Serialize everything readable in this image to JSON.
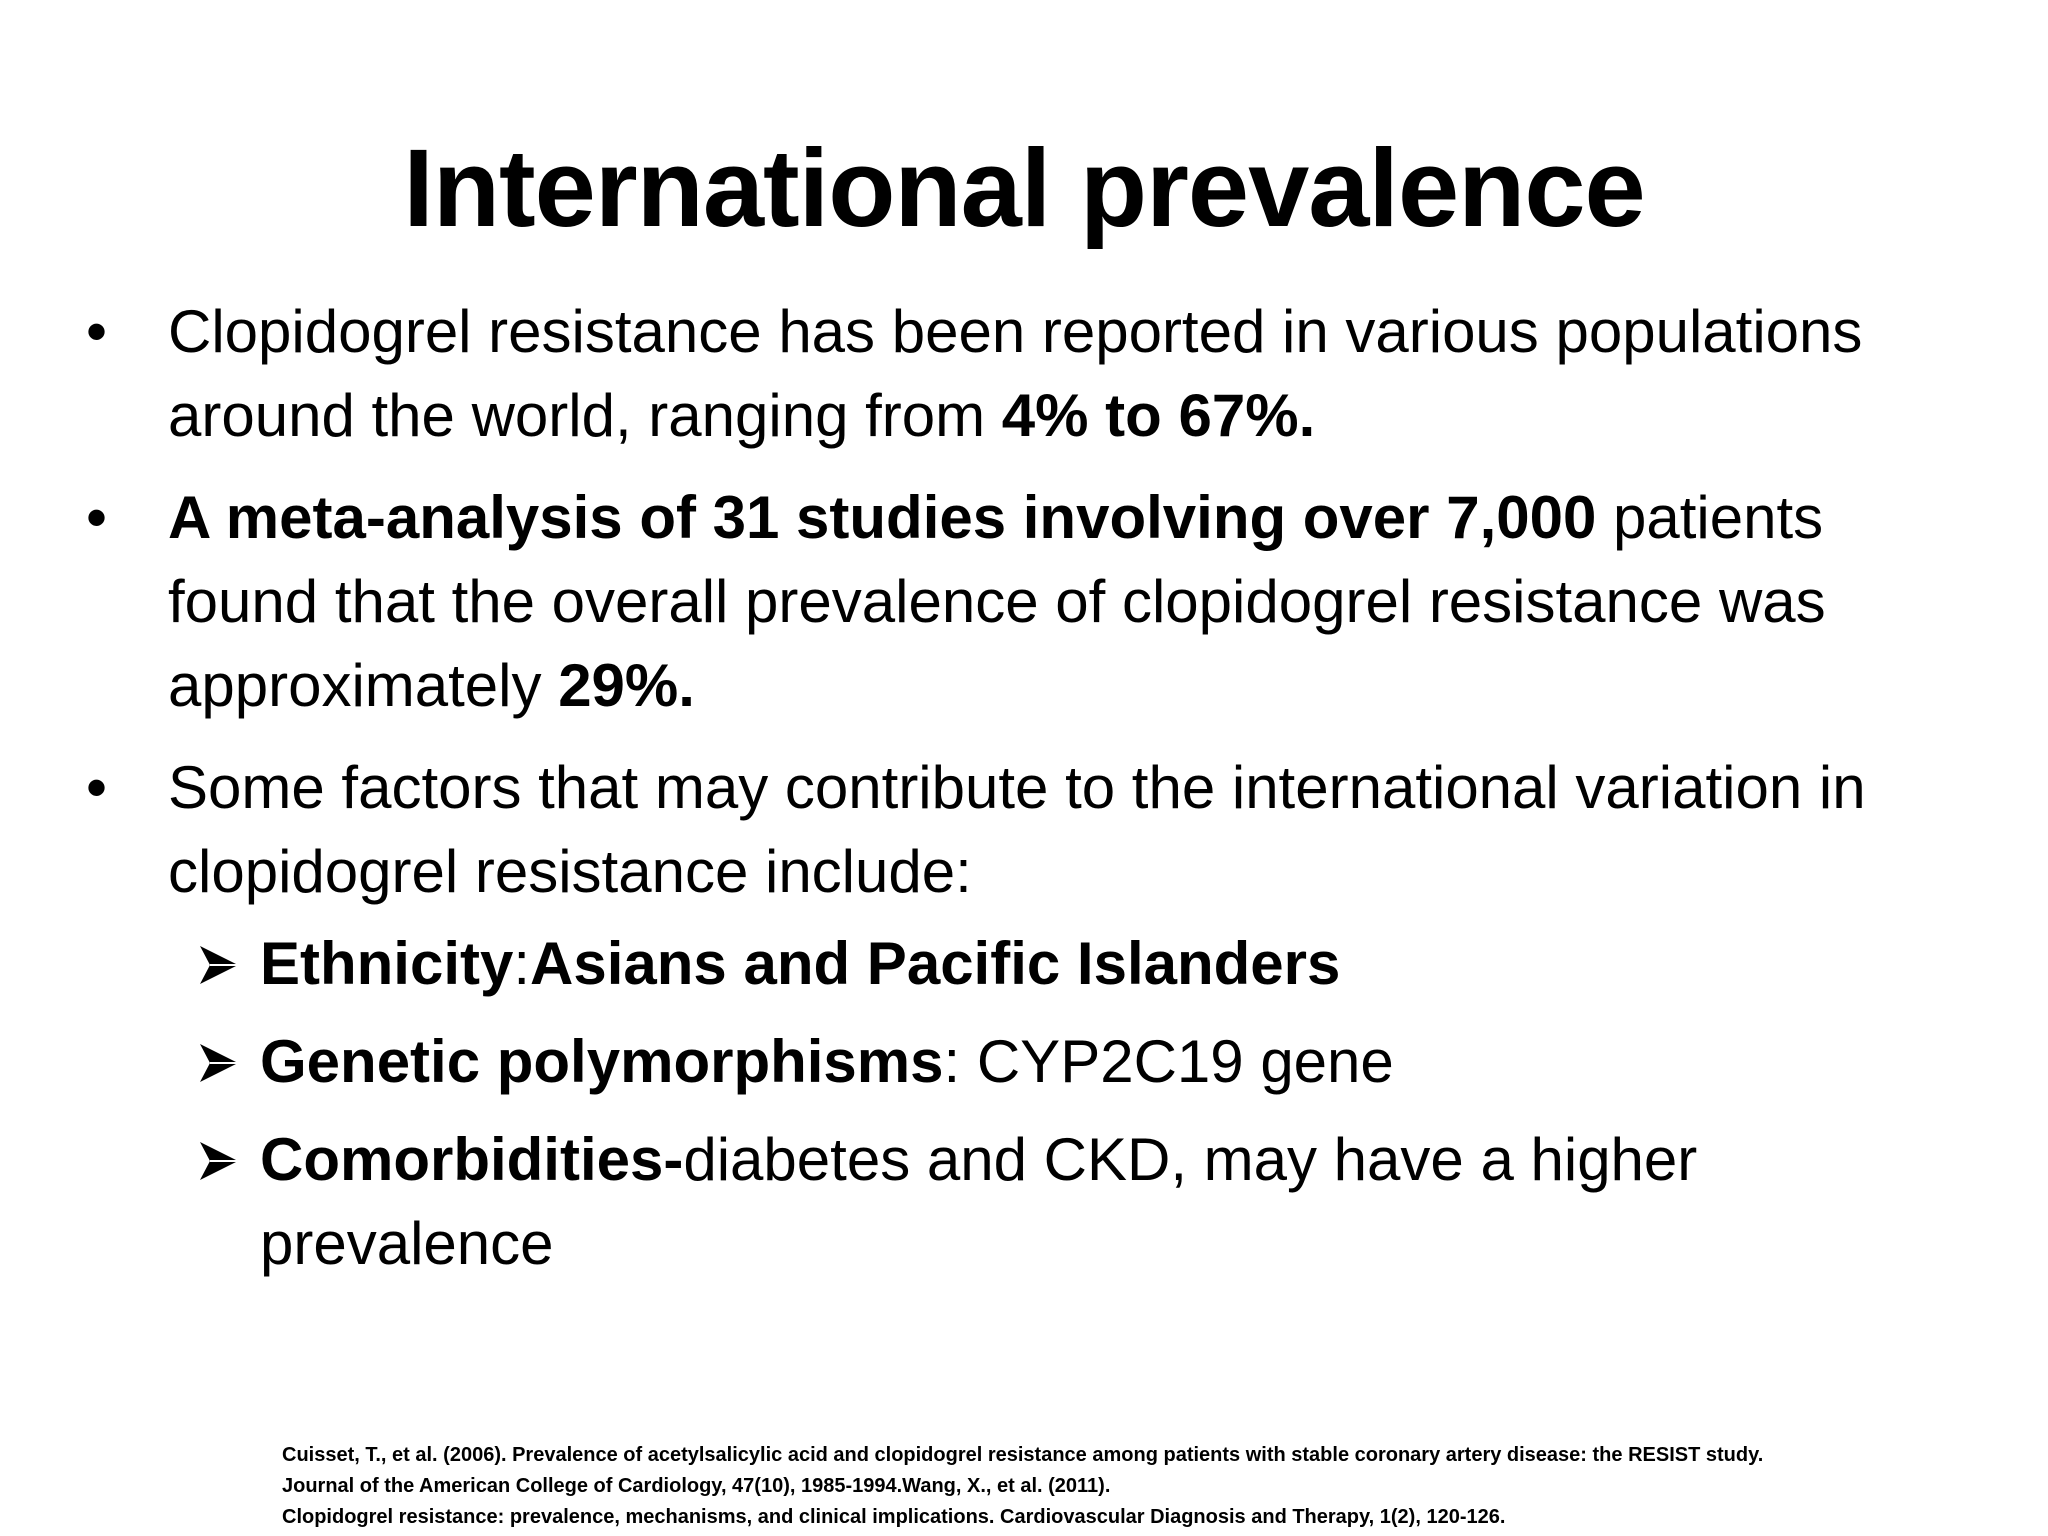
{
  "slide": {
    "title": "International prevalence",
    "bullets": [
      {
        "marker": "•",
        "text_1": "Clopidogrel resistance has been reported in various populations around the world, ranging from ",
        "bold_1": "4% to 67%."
      },
      {
        "marker": "•",
        "bold_1": " A meta-analysis of 31 studies involving over 7,000",
        "text_1": " patients found that the overall prevalence of clopidogrel resistance was approximately ",
        "bold_2": "29%."
      },
      {
        "marker": "•",
        "text_1": "Some factors that may contribute to the international variation in clopidogrel resistance include:",
        "sub_items": [
          {
            "icon": "arrow-bullet-icon",
            "bold_1": "Ethnicity",
            "text_1": ":",
            "bold_2": "Asians and Pacific Islanders"
          },
          {
            "icon": "arrow-bullet-icon",
            "bold_1": "Genetic polymorphisms",
            "text_1": ": CYP2C19 gene"
          },
          {
            "icon": "arrow-bullet-icon",
            "bold_1": "Comorbidities-",
            "text_1": "diabetes and  CKD, may have a higher prevalence"
          }
        ]
      }
    ],
    "references": [
      "Cuisset, T., et al. (2006). Prevalence of acetylsalicylic acid and clopidogrel resistance among patients with stable coronary artery disease: the RESIST study.",
      " Journal of the American College of Cardiology, 47(10), 1985-1994.Wang, X., et al. (2011).",
      "Clopidogrel resistance: prevalence, mechanisms, and clinical implications. Cardiovascular Diagnosis and Therapy, 1(2), 120-126."
    ]
  }
}
